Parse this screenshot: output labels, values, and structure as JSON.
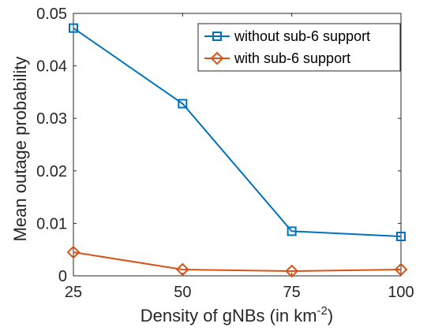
{
  "chart_data": {
    "type": "line",
    "xlabel": "Density of gNBs (in km",
    "xlabel_sup": "-2",
    "xlabel_tail": ")",
    "ylabel": "Mean outage probability",
    "x": [
      25,
      50,
      75,
      100
    ],
    "xticks": [
      "25",
      "50",
      "75",
      "100"
    ],
    "yticks": [
      "0",
      "0.01",
      "0.02",
      "0.03",
      "0.04",
      "0.05"
    ],
    "xlim": [
      25,
      100
    ],
    "ylim": [
      0,
      0.05
    ],
    "grid": false,
    "legend_position": "top-right",
    "series": [
      {
        "name": "without sub-6 support",
        "values": [
          0.0472,
          0.0328,
          0.0085,
          0.0075
        ],
        "color": "#0072BD",
        "marker": "square"
      },
      {
        "name": "with sub-6 support",
        "values": [
          0.0045,
          0.0012,
          0.0009,
          0.0012
        ],
        "color": "#D95319",
        "marker": "diamond"
      }
    ]
  }
}
